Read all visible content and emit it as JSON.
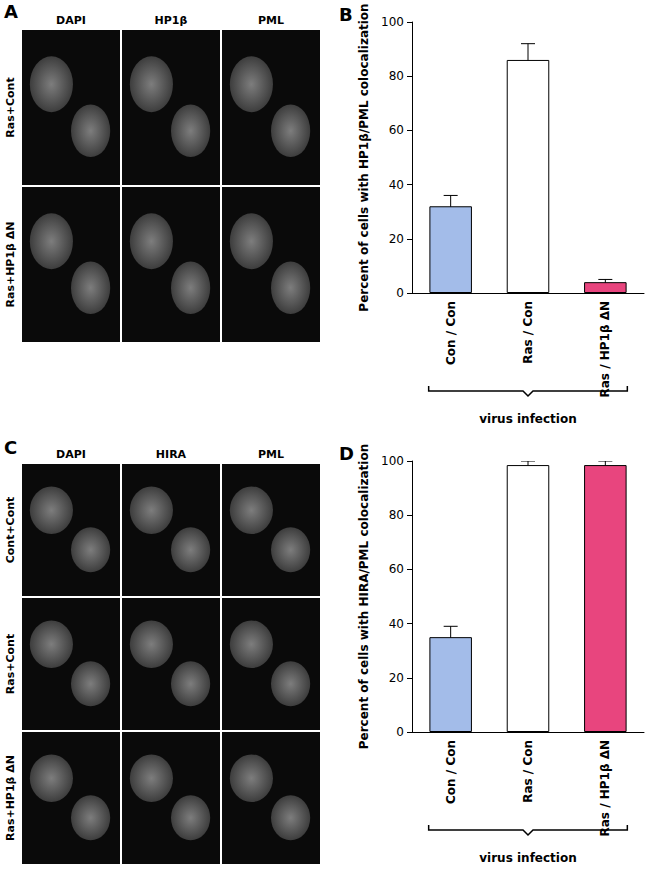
{
  "figure": {
    "panels": [
      {
        "label": "A",
        "type": "image_grid",
        "columns": [
          "DAPI",
          "HP1β",
          "PML"
        ],
        "rows": [
          "Ras+Cont",
          "Ras+HP1β ΔN"
        ]
      },
      {
        "label": "C",
        "type": "image_grid",
        "columns": [
          "DAPI",
          "HIRA",
          "PML"
        ],
        "rows": [
          "Cont+Cont",
          "Ras+Cont",
          "Ras+HP1β ΔN"
        ]
      }
    ]
  },
  "chart_data": [
    {
      "panel": "B",
      "type": "bar",
      "ylabel": "Percent of cells with HP1β/PML colocalization",
      "xlabel": "virus infection",
      "categories": [
        "Con / Con",
        "Ras / Con",
        "Ras / HP1β ΔN"
      ],
      "values": [
        32,
        86,
        4
      ],
      "errors": [
        4,
        6,
        1
      ],
      "colors": [
        "#a3bce9",
        "#ffffff",
        "#e8457e"
      ],
      "ylim": [
        0,
        100
      ],
      "yticks": [
        0,
        20,
        40,
        60,
        80,
        100
      ],
      "grid": false
    },
    {
      "panel": "D",
      "type": "bar",
      "ylabel": "Percent of cells with HIRA/PML colocalization",
      "xlabel": "virus infection",
      "categories": [
        "Con / Con",
        "Ras / Con",
        "Ras / HP1β ΔN"
      ],
      "values": [
        35,
        98.5,
        98.5
      ],
      "errors": [
        4,
        1.5,
        1.5
      ],
      "colors": [
        "#a3bce9",
        "#ffffff",
        "#e8457e"
      ],
      "ylim": [
        0,
        100
      ],
      "yticks": [
        0,
        20,
        40,
        60,
        80,
        100
      ],
      "grid": false
    }
  ]
}
